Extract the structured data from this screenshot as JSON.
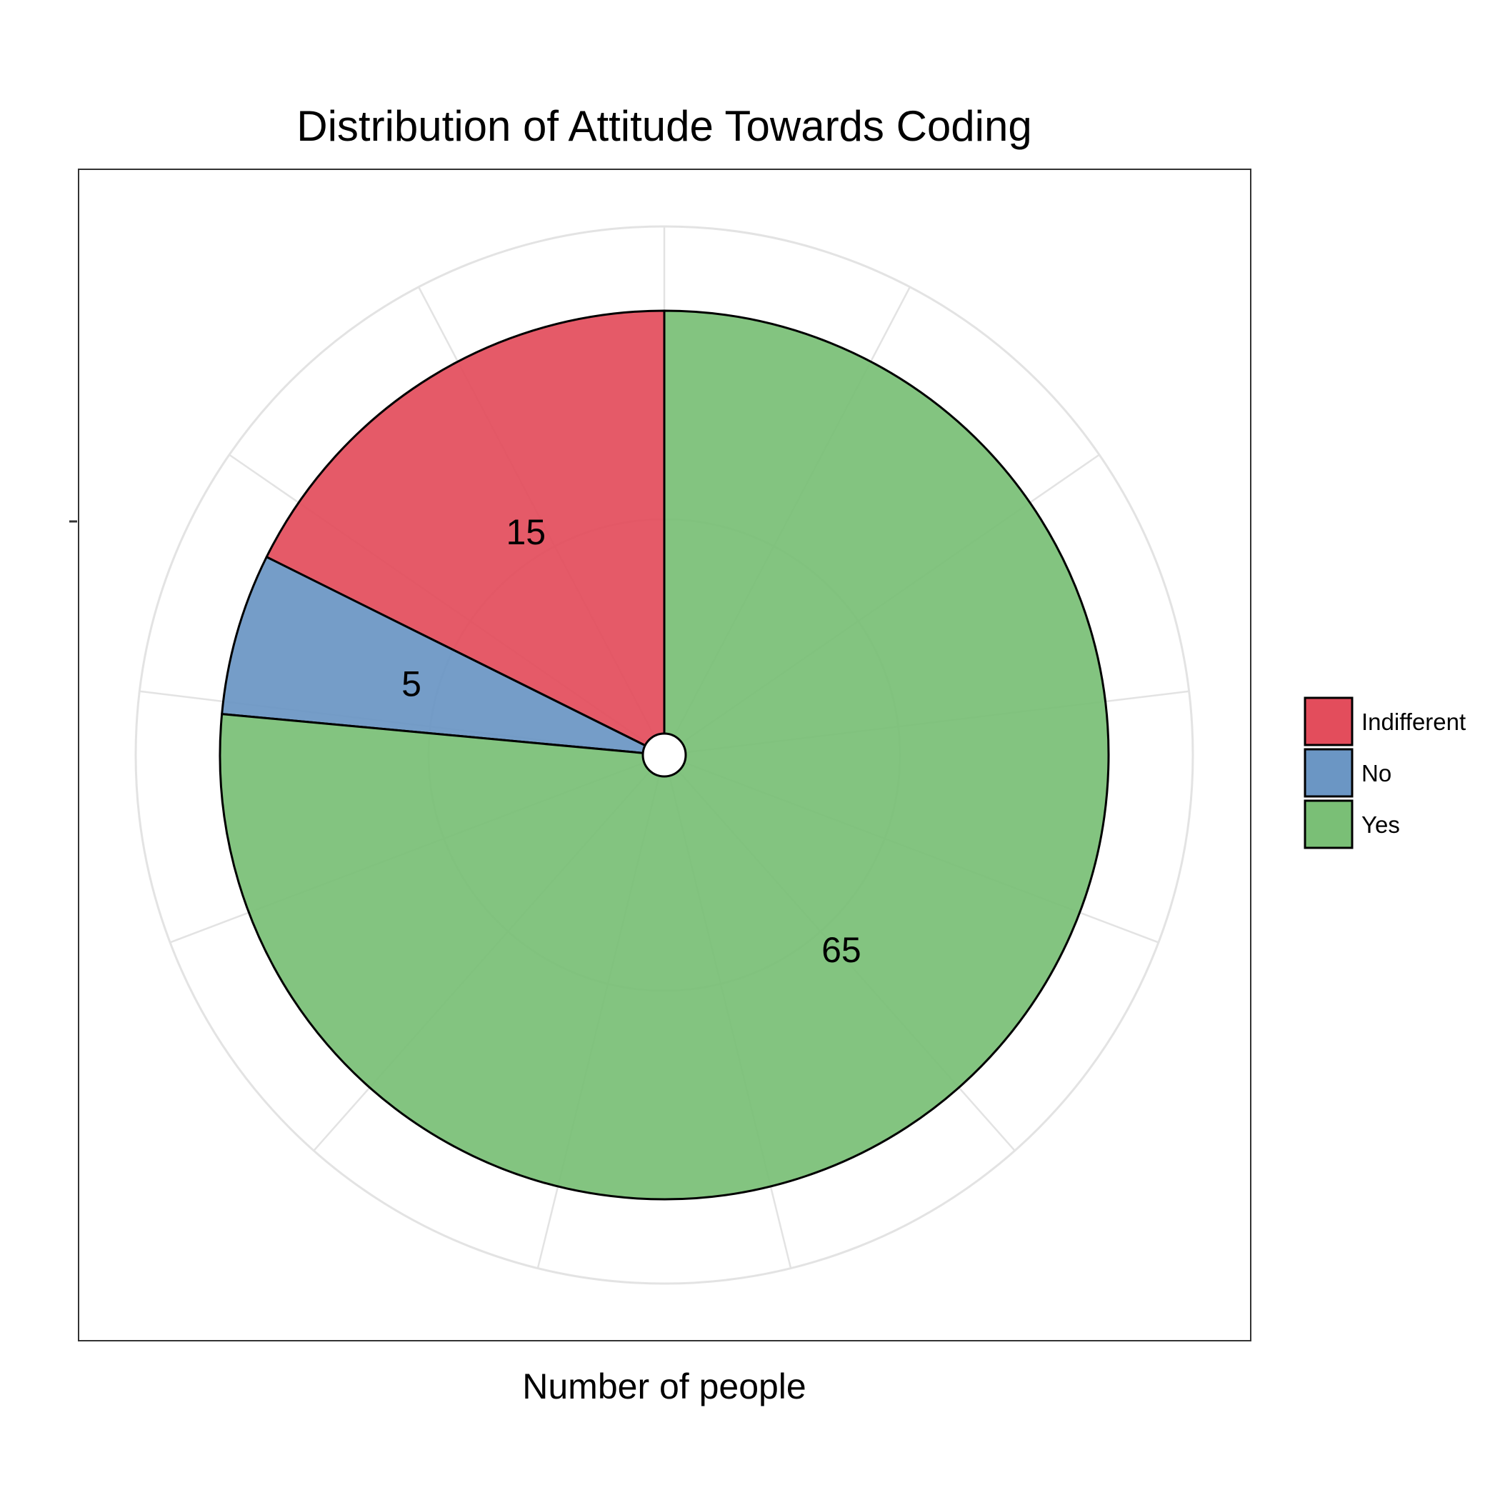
{
  "chart_data": {
    "type": "pie",
    "title": "Distribution of Attitude Towards Coding",
    "xlabel": "Number of people",
    "ylabel": "",
    "categories": [
      "Indifferent",
      "No",
      "Yes"
    ],
    "values": [
      15,
      5,
      65
    ],
    "colors": [
      "#E34D5C",
      "#6B96C4",
      "#7ABF76"
    ],
    "data_labels": [
      "15",
      "5",
      "65"
    ],
    "legend_position": "right",
    "grid": true,
    "panel_border": true
  }
}
